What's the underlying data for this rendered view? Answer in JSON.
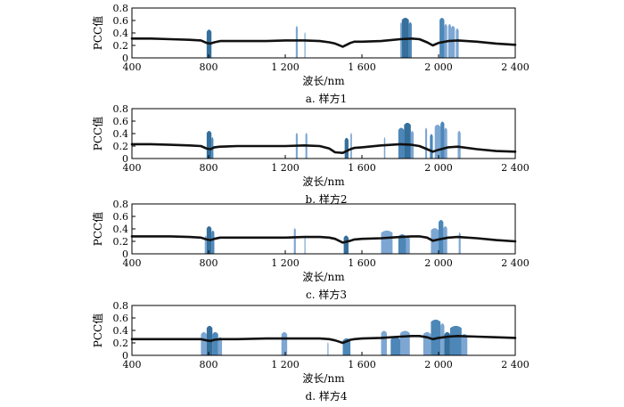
{
  "figure": {
    "xlabel": "波长/nm",
    "ylabel": "PCC值"
  },
  "colors": {
    "curve": "#111111",
    "band_dark": "#1f5f91",
    "band_mid": "#3a7ab0",
    "band_light": "#6f9ccd"
  },
  "chart_data": [
    {
      "type": "line",
      "caption": "a.  样方1",
      "xlabel": "波长/nm",
      "ylabel": "PCC值",
      "xlim": [
        400,
        2400
      ],
      "ylim": [
        0,
        0.8
      ],
      "xticks": [
        400,
        800,
        1200,
        1600,
        2000,
        2400
      ],
      "xtick_labels": [
        "400",
        "800",
        "1 200",
        "1 600",
        "2 000",
        "2 400"
      ],
      "yticks": [
        0,
        0.2,
        0.4,
        0.6,
        0.8
      ],
      "ytick_labels": [
        "0",
        "0.2",
        "0.4",
        "0.6",
        "0.8"
      ],
      "series": [
        {
          "x": [
            400,
            500,
            600,
            700,
            760,
            790,
            810,
            830,
            860,
            950,
            1100,
            1200,
            1300,
            1380,
            1430,
            1460,
            1500,
            1540,
            1560,
            1600,
            1700,
            1800,
            1860,
            1900,
            1940,
            1970,
            2000,
            2050,
            2100,
            2200,
            2300,
            2400
          ],
          "y": [
            0.31,
            0.31,
            0.3,
            0.29,
            0.28,
            0.24,
            0.23,
            0.25,
            0.27,
            0.27,
            0.27,
            0.28,
            0.28,
            0.27,
            0.25,
            0.23,
            0.18,
            0.24,
            0.26,
            0.26,
            0.27,
            0.3,
            0.31,
            0.3,
            0.25,
            0.2,
            0.24,
            0.27,
            0.28,
            0.26,
            0.23,
            0.21
          ]
        }
      ],
      "bands": [
        {
          "x1": 790,
          "x2": 815,
          "top": 0.46,
          "shade": "dark"
        },
        {
          "x1": 1255,
          "x2": 1265,
          "top": 0.52,
          "shade": "light"
        },
        {
          "x1": 1300,
          "x2": 1305,
          "top": 0.42,
          "shade": "light"
        },
        {
          "x1": 1800,
          "x2": 1808,
          "top": 0.58,
          "shade": "light"
        },
        {
          "x1": 1808,
          "x2": 1845,
          "top": 0.65,
          "shade": "dark"
        },
        {
          "x1": 1845,
          "x2": 1860,
          "top": 0.58,
          "shade": "mid"
        },
        {
          "x1": 2005,
          "x2": 2030,
          "top": 0.65,
          "shade": "mid"
        },
        {
          "x1": 2030,
          "x2": 2045,
          "top": 0.55,
          "shade": "light"
        },
        {
          "x1": 2050,
          "x2": 2065,
          "top": 0.55,
          "shade": "light"
        },
        {
          "x1": 2065,
          "x2": 2085,
          "top": 0.52,
          "shade": "light"
        },
        {
          "x1": 2090,
          "x2": 2105,
          "top": 0.48,
          "shade": "light"
        }
      ]
    },
    {
      "type": "line",
      "caption": "b.  样方2",
      "xlabel": "波长/nm",
      "ylabel": "PCC值",
      "xlim": [
        400,
        2400
      ],
      "ylim": [
        0,
        0.8
      ],
      "xticks": [
        400,
        800,
        1200,
        1600,
        2000,
        2400
      ],
      "xtick_labels": [
        "400",
        "800",
        "1 200",
        "1 600",
        "2 000",
        "2 400"
      ],
      "yticks": [
        0,
        0.2,
        0.4,
        0.6,
        0.8
      ],
      "ytick_labels": [
        "0",
        "0.2",
        "0.4",
        "0.6",
        "0.8"
      ],
      "series": [
        {
          "x": [
            400,
            500,
            600,
            700,
            760,
            790,
            810,
            830,
            860,
            950,
            1100,
            1200,
            1300,
            1380,
            1430,
            1460,
            1500,
            1540,
            1560,
            1600,
            1700,
            1800,
            1860,
            1900,
            1940,
            1970,
            2000,
            2050,
            2100,
            2200,
            2300,
            2400
          ],
          "y": [
            0.23,
            0.23,
            0.22,
            0.21,
            0.2,
            0.16,
            0.15,
            0.18,
            0.19,
            0.2,
            0.2,
            0.2,
            0.21,
            0.2,
            0.16,
            0.1,
            0.09,
            0.15,
            0.17,
            0.18,
            0.21,
            0.23,
            0.22,
            0.2,
            0.15,
            0.11,
            0.14,
            0.18,
            0.19,
            0.15,
            0.12,
            0.11
          ]
        }
      ],
      "bands": [
        {
          "x1": 790,
          "x2": 815,
          "top": 0.45,
          "shade": "dark"
        },
        {
          "x1": 815,
          "x2": 825,
          "top": 0.35,
          "shade": "mid"
        },
        {
          "x1": 1255,
          "x2": 1265,
          "top": 0.42,
          "shade": "light"
        },
        {
          "x1": 1305,
          "x2": 1315,
          "top": 0.42,
          "shade": "light"
        },
        {
          "x1": 1510,
          "x2": 1530,
          "top": 0.34,
          "shade": "dark"
        },
        {
          "x1": 1540,
          "x2": 1548,
          "top": 0.42,
          "shade": "light"
        },
        {
          "x1": 1715,
          "x2": 1722,
          "top": 0.35,
          "shade": "light"
        },
        {
          "x1": 1790,
          "x2": 1820,
          "top": 0.5,
          "shade": "mid"
        },
        {
          "x1": 1820,
          "x2": 1855,
          "top": 0.58,
          "shade": "dark"
        },
        {
          "x1": 1855,
          "x2": 1870,
          "top": 0.45,
          "shade": "light"
        },
        {
          "x1": 1930,
          "x2": 1940,
          "top": 0.5,
          "shade": "light"
        },
        {
          "x1": 1955,
          "x2": 1970,
          "top": 0.4,
          "shade": "mid"
        },
        {
          "x1": 1980,
          "x2": 2010,
          "top": 0.55,
          "shade": "light"
        },
        {
          "x1": 2010,
          "x2": 2030,
          "top": 0.6,
          "shade": "mid"
        },
        {
          "x1": 2030,
          "x2": 2045,
          "top": 0.5,
          "shade": "light"
        },
        {
          "x1": 2100,
          "x2": 2115,
          "top": 0.45,
          "shade": "light"
        }
      ]
    },
    {
      "type": "line",
      "caption": "c.  样方3",
      "xlabel": "波长/nm",
      "ylabel": "PCC值",
      "xlim": [
        400,
        2400
      ],
      "ylim": [
        0,
        0.8
      ],
      "xticks": [
        400,
        800,
        1200,
        1600,
        2000,
        2400
      ],
      "xtick_labels": [
        "400",
        "800",
        "1 200",
        "1 600",
        "2 000",
        "2 400"
      ],
      "yticks": [
        0,
        0.2,
        0.4,
        0.6,
        0.8
      ],
      "ytick_labels": [
        "0",
        "0.2",
        "0.4",
        "0.6",
        "0.8"
      ],
      "series": [
        {
          "x": [
            400,
            500,
            600,
            700,
            760,
            790,
            810,
            830,
            860,
            950,
            1100,
            1200,
            1300,
            1380,
            1430,
            1460,
            1500,
            1540,
            1560,
            1600,
            1700,
            1800,
            1860,
            1900,
            1940,
            1970,
            2000,
            2050,
            2100,
            2200,
            2300,
            2400
          ],
          "y": [
            0.28,
            0.28,
            0.28,
            0.27,
            0.26,
            0.23,
            0.22,
            0.24,
            0.26,
            0.26,
            0.26,
            0.26,
            0.27,
            0.27,
            0.26,
            0.24,
            0.18,
            0.21,
            0.23,
            0.24,
            0.25,
            0.27,
            0.28,
            0.28,
            0.26,
            0.21,
            0.23,
            0.26,
            0.27,
            0.25,
            0.22,
            0.2
          ]
        }
      ],
      "bands": [
        {
          "x1": 780,
          "x2": 790,
          "top": 0.3,
          "shade": "light"
        },
        {
          "x1": 790,
          "x2": 815,
          "top": 0.45,
          "shade": "dark"
        },
        {
          "x1": 815,
          "x2": 830,
          "top": 0.38,
          "shade": "mid"
        },
        {
          "x1": 1245,
          "x2": 1255,
          "top": 0.42,
          "shade": "light"
        },
        {
          "x1": 1300,
          "x2": 1305,
          "top": 0.3,
          "shade": "light"
        },
        {
          "x1": 1505,
          "x2": 1530,
          "top": 0.3,
          "shade": "dark"
        },
        {
          "x1": 1700,
          "x2": 1760,
          "top": 0.38,
          "shade": "light"
        },
        {
          "x1": 1790,
          "x2": 1830,
          "top": 0.32,
          "shade": "mid"
        },
        {
          "x1": 1830,
          "x2": 1850,
          "top": 0.28,
          "shade": "light"
        },
        {
          "x1": 1960,
          "x2": 2000,
          "top": 0.42,
          "shade": "light"
        },
        {
          "x1": 2000,
          "x2": 2025,
          "top": 0.55,
          "shade": "mid"
        },
        {
          "x1": 2025,
          "x2": 2045,
          "top": 0.45,
          "shade": "light"
        },
        {
          "x1": 2105,
          "x2": 2115,
          "top": 0.35,
          "shade": "light"
        }
      ]
    },
    {
      "type": "line",
      "caption": "d.  样方4",
      "xlabel": "波长/nm",
      "ylabel": "PCC值",
      "xlim": [
        400,
        2400
      ],
      "ylim": [
        0,
        0.8
      ],
      "xticks": [
        400,
        800,
        1200,
        1600,
        2000,
        2400
      ],
      "xtick_labels": [
        "400",
        "800",
        "1 200",
        "1 600",
        "2 000",
        "2 400"
      ],
      "yticks": [
        0,
        0.2,
        0.4,
        0.6,
        0.8
      ],
      "ytick_labels": [
        "0",
        "0.2",
        "0.4",
        "0.6",
        "0.8"
      ],
      "series": [
        {
          "x": [
            400,
            500,
            600,
            700,
            760,
            790,
            810,
            830,
            860,
            950,
            1100,
            1200,
            1300,
            1380,
            1430,
            1460,
            1500,
            1540,
            1560,
            1600,
            1700,
            1800,
            1860,
            1900,
            1940,
            1970,
            2000,
            2050,
            2100,
            2200,
            2300,
            2400
          ],
          "y": [
            0.26,
            0.26,
            0.26,
            0.26,
            0.26,
            0.24,
            0.23,
            0.25,
            0.26,
            0.26,
            0.27,
            0.27,
            0.27,
            0.27,
            0.26,
            0.24,
            0.2,
            0.25,
            0.26,
            0.27,
            0.28,
            0.3,
            0.31,
            0.31,
            0.29,
            0.26,
            0.28,
            0.3,
            0.31,
            0.3,
            0.29,
            0.28
          ]
        }
      ],
      "bands": [
        {
          "x1": 760,
          "x2": 790,
          "top": 0.38,
          "shade": "light"
        },
        {
          "x1": 790,
          "x2": 820,
          "top": 0.48,
          "shade": "dark"
        },
        {
          "x1": 820,
          "x2": 850,
          "top": 0.38,
          "shade": "mid"
        },
        {
          "x1": 850,
          "x2": 870,
          "top": 0.3,
          "shade": "light"
        },
        {
          "x1": 1180,
          "x2": 1210,
          "top": 0.38,
          "shade": "light"
        },
        {
          "x1": 1420,
          "x2": 1425,
          "top": 0.22,
          "shade": "light"
        },
        {
          "x1": 1500,
          "x2": 1540,
          "top": 0.28,
          "shade": "mid"
        },
        {
          "x1": 1700,
          "x2": 1730,
          "top": 0.4,
          "shade": "light"
        },
        {
          "x1": 1750,
          "x2": 1800,
          "top": 0.3,
          "shade": "mid"
        },
        {
          "x1": 1800,
          "x2": 1850,
          "top": 0.4,
          "shade": "light"
        },
        {
          "x1": 1920,
          "x2": 1960,
          "top": 0.38,
          "shade": "light"
        },
        {
          "x1": 1960,
          "x2": 2010,
          "top": 0.58,
          "shade": "mid"
        },
        {
          "x1": 2010,
          "x2": 2030,
          "top": 0.52,
          "shade": "light"
        },
        {
          "x1": 2030,
          "x2": 2060,
          "top": 0.38,
          "shade": "dark"
        },
        {
          "x1": 2060,
          "x2": 2120,
          "top": 0.48,
          "shade": "mid"
        },
        {
          "x1": 2120,
          "x2": 2150,
          "top": 0.35,
          "shade": "light"
        }
      ]
    }
  ]
}
